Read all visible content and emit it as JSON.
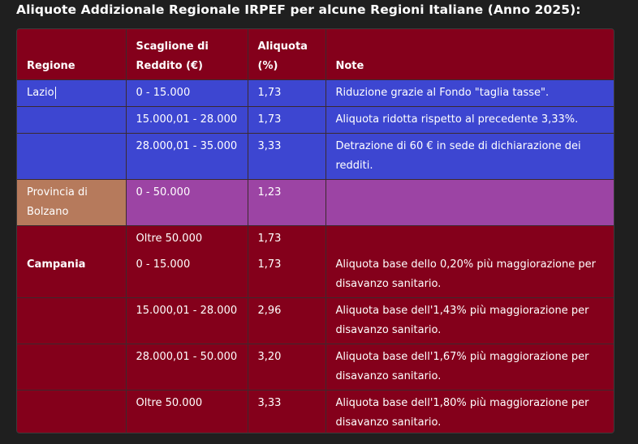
{
  "heading": "Aliquote Addizionale Regionale IRPEF per alcune Regioni Italiane (Anno 2025):",
  "columns": {
    "regione": "Regione",
    "scaglione": "Scaglione di Reddito (€)",
    "aliquota": "Aliquota (%)",
    "note": "Note"
  },
  "rows": [
    {
      "regione": "Lazio",
      "scaglione": "0 - 15.000",
      "aliquota": "1,73",
      "note": "Riduzione grazie al Fondo \"taglia tasse\"."
    },
    {
      "regione": "",
      "scaglione": "15.000,01 - 28.000",
      "aliquota": "1,73",
      "note": "Aliquota ridotta rispetto al precedente 3,33%."
    },
    {
      "regione": "",
      "scaglione": "28.000,01 - 35.000",
      "aliquota": "3,33",
      "note": "Detrazione di 60 € in sede di dichiarazione dei redditi."
    },
    {
      "regione": "Provincia di Bolzano",
      "scaglione": "0 - 50.000",
      "aliquota": "1,23",
      "note": ""
    },
    {
      "regione": "",
      "scaglione": "Oltre 50.000",
      "aliquota": "1,73",
      "note": ""
    },
    {
      "regione": "Campania",
      "scaglione": "0 - 15.000",
      "aliquota": "1,73",
      "note": "Aliquota base dello 0,20% più maggiorazione per disavanzo sanitario."
    },
    {
      "regione": "",
      "scaglione": "15.000,01 - 28.000",
      "aliquota": "2,96",
      "note": "Aliquota base dell'1,43% più maggiorazione per disavanzo sanitario."
    },
    {
      "regione": "",
      "scaglione": "28.000,01 - 50.000",
      "aliquota": "3,20",
      "note": "Aliquota base dell'1,67% più maggiorazione per disavanzo sanitario."
    },
    {
      "regione": "",
      "scaglione": "Oltre 50.000",
      "aliquota": "3,33",
      "note": "Aliquota base dell'1,80% più maggiorazione per disavanzo sanitario."
    }
  ],
  "colors": {
    "page_bg": "#1f1f1f",
    "header_bg": "#84001b",
    "lazio_bg": "#3d46d1",
    "bolzano_bg": "#9c44a4",
    "bolzano_region_bg": "#b67a5c",
    "campania_bg": "#84001b"
  }
}
